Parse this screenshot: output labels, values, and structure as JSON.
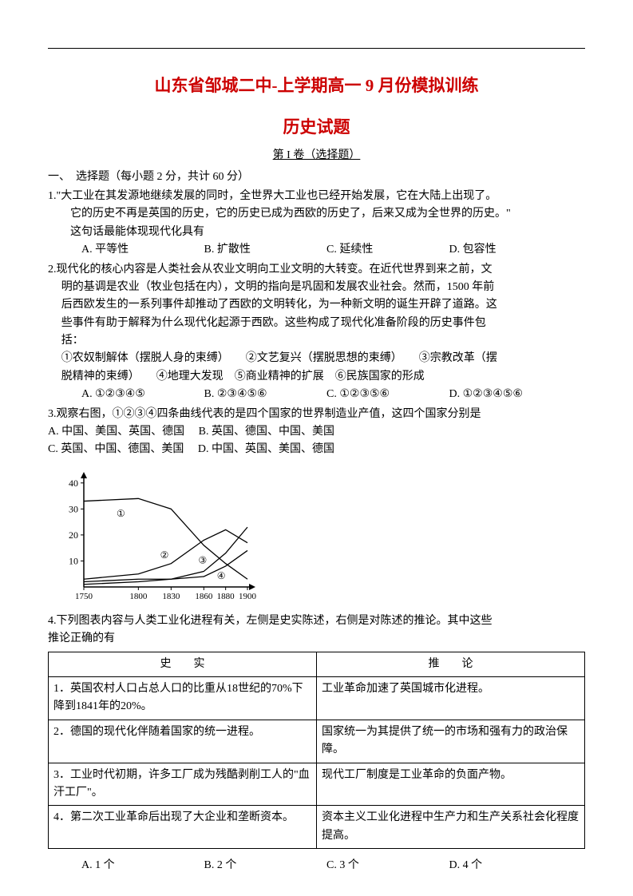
{
  "header": {
    "title_main": "山东省邹城二中-上学期高一 9 月份模拟训练",
    "title_sub": "历史试题",
    "section_label": "第 I 卷（选择题）",
    "part_label": "一、　选择题（每小题 2 分，共计 60 分）"
  },
  "q1": {
    "num": "1.",
    "text1": "\"大工业在其发源地继续发展的同时，全世界大工业也已经开始发展，它在大陆上出现了。",
    "text2": "它的历史不再是英国的历史，它的历史已成为西欧的历史了，后来又成为全世界的历史。\"",
    "text3": "这句话最能体现现代化具有",
    "opts": {
      "A": "A. 平等性",
      "B": "B. 扩散性",
      "C": "C. 延续性",
      "D": "D. 包容性"
    }
  },
  "q2": {
    "num": "2.",
    "text1": "现代化的核心内容是人类社会从农业文明向工业文明的大转变。在近代世界到来之前，文",
    "text2": "明的基调是农业（牧业包括在内），文明的指向是巩固和发展农业社会。然而，1500 年前",
    "text3": "后西欧发生的一系列事件却推动了西欧的文明转化，为一种新文明的诞生开辟了道路。这",
    "text4": "些事件有助于解释为什么现代化起源于西欧。这些构成了现代化准备阶段的历史事件包",
    "text5": "括：",
    "items1": "①农奴制解体（摆脱人身的束缚）　　②文艺复兴（摆脱思想的束缚）　　③宗教改革（摆",
    "items2": "脱精神的束缚）　　④地理大发现　⑤商业精神的扩展　⑥民族国家的形成",
    "opts": {
      "A": "A. ①②③④⑤",
      "B": "B. ②③④⑤⑥",
      "C": "C. ①②③⑤⑥",
      "D": "D. ①②③④⑤⑥"
    }
  },
  "q3": {
    "num": "3.",
    "text1": "观察右图，①②③④四条曲线代表的是四个国家的世界制造业产值，这四个国家分别是",
    "optA": "A. 中国、美国、英国、德国",
    "optB": "B. 英国、德国、中国、美国",
    "optC": "C. 英国、中国、德国、美国",
    "optD": "D. 中国、英国、美国、德国"
  },
  "chart": {
    "xticks": [
      "1750",
      "1800",
      "1830",
      "1860",
      "1880",
      "1900"
    ],
    "yticks": [
      "10",
      "20",
      "30",
      "40"
    ],
    "series": {
      "s1": {
        "label": "①",
        "points": [
          [
            1750,
            33
          ],
          [
            1800,
            34
          ],
          [
            1830,
            30
          ],
          [
            1860,
            16
          ],
          [
            1880,
            9
          ],
          [
            1900,
            3
          ]
        ]
      },
      "s2": {
        "label": "②",
        "points": [
          [
            1750,
            3
          ],
          [
            1800,
            5
          ],
          [
            1830,
            9
          ],
          [
            1860,
            18
          ],
          [
            1880,
            22
          ],
          [
            1900,
            17
          ]
        ]
      },
      "s3": {
        "label": "③",
        "points": [
          [
            1750,
            1
          ],
          [
            1800,
            2
          ],
          [
            1830,
            3
          ],
          [
            1860,
            6
          ],
          [
            1880,
            13
          ],
          [
            1900,
            23
          ]
        ]
      },
      "s4": {
        "label": "④",
        "points": [
          [
            1750,
            2
          ],
          [
            1800,
            3
          ],
          [
            1830,
            3
          ],
          [
            1860,
            4
          ],
          [
            1880,
            8
          ],
          [
            1900,
            14
          ]
        ]
      }
    },
    "stroke": "#000000",
    "xrange": [
      1750,
      1900
    ],
    "yrange": [
      0,
      43
    ]
  },
  "q4": {
    "num": "4.",
    "text1": "下列图表内容与人类工业化进程有关，左侧是史实陈述，右侧是对陈述的推论。其中这些",
    "text2": "推论正确的有",
    "th1": "史　　实",
    "th2": "推　　论",
    "rows": [
      {
        "fact": "1．英国农村人口占总人口的比重从18世纪的70%下降到1841年的20%。",
        "infer": "工业革命加速了英国城市化进程。"
      },
      {
        "fact": "2．德国的现代化伴随着国家的统一进程。",
        "infer": "国家统一为其提供了统一的市场和强有力的政治保障。"
      },
      {
        "fact": "3．工业时代初期，许多工厂成为残酷剥削工人的\"血汗工厂\"。",
        "infer": "现代工厂制度是工业革命的负面产物。"
      },
      {
        "fact": "4．第二次工业革命后出现了大企业和垄断资本。",
        "infer": "资本主义工业化进程中生产力和生产关系社会化程度提高。"
      }
    ],
    "opts": {
      "A": "A. 1 个",
      "B": "B. 2 个",
      "C": "C. 3 个",
      "D": "D. 4 个"
    }
  }
}
